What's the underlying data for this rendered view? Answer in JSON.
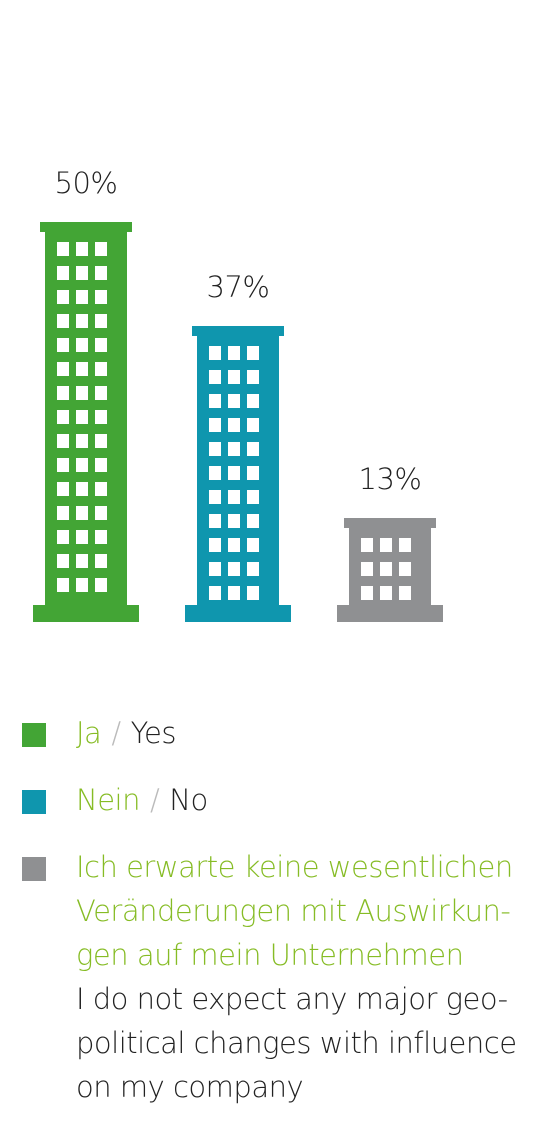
{
  "chart_data": {
    "type": "bar",
    "values": [
      50,
      37,
      13
    ],
    "value_labels": [
      "50%",
      "37%",
      "13%"
    ],
    "colors": [
      "#43a535",
      "#0f96ae",
      "#8f9092"
    ],
    "separator": "/",
    "legend": [
      {
        "de": [
          "Ja"
        ],
        "en": [
          "Yes"
        ]
      },
      {
        "de": [
          "Nein"
        ],
        "en": [
          "No"
        ]
      },
      {
        "de": [
          "Ich erwarte keine wesentlichen",
          "Veränderungen mit Auswirkun-",
          "gen auf mein Unternehmen"
        ],
        "en": [
          "I do not expect any major geo-",
          "political changes with influence",
          "on my company"
        ]
      }
    ]
  }
}
